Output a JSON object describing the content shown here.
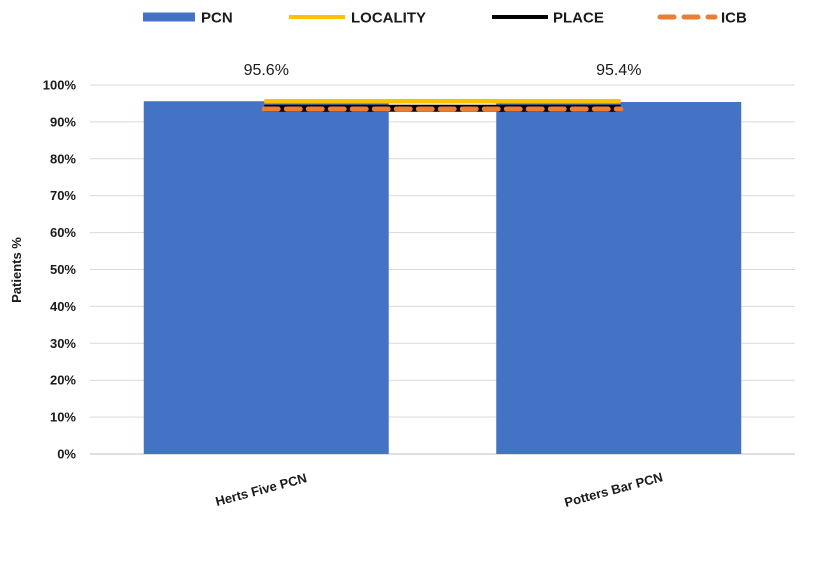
{
  "chart_data": {
    "type": "bar",
    "categories": [
      "Herts Five PCN",
      "Potters Bar PCN"
    ],
    "series": [
      {
        "name": "PCN",
        "kind": "bar",
        "color": "#4472C4",
        "values": [
          95.6,
          95.4
        ]
      },
      {
        "name": "LOCALITY",
        "kind": "line",
        "color": "#FFC000",
        "values": [
          95.6,
          95.6
        ]
      },
      {
        "name": "PLACE",
        "kind": "line",
        "color": "#000000",
        "values": [
          93.7,
          93.7
        ]
      },
      {
        "name": "ICB",
        "kind": "dashed-line",
        "color": "#ED7D31",
        "values": [
          93.5,
          93.5
        ]
      }
    ],
    "data_labels": [
      "95.6%",
      "95.4%"
    ],
    "ylabel": "Patients %",
    "ylim": [
      0,
      100
    ],
    "yticks": [
      "0%",
      "10%",
      "20%",
      "30%",
      "40%",
      "50%",
      "60%",
      "70%",
      "80%",
      "90%",
      "100%"
    ],
    "grid": true,
    "legend_position": "top"
  }
}
